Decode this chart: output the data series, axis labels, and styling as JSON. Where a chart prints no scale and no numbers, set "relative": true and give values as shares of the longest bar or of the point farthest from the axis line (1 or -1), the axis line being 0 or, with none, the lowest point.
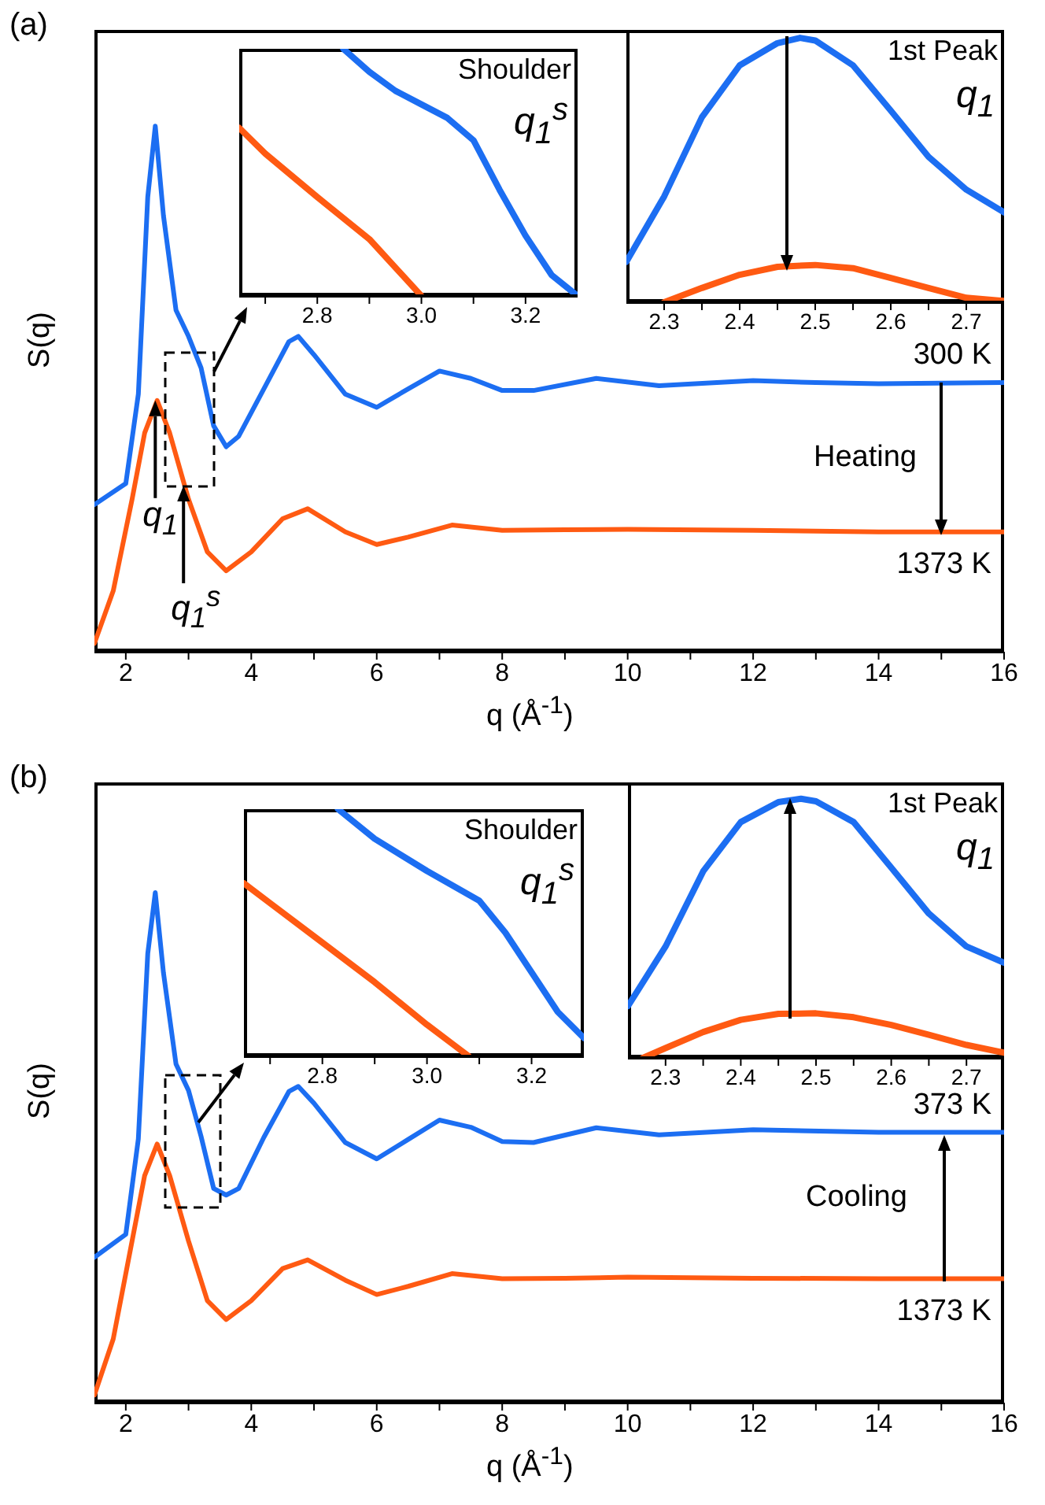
{
  "chart_data": [
    {
      "type": "line",
      "title": "(a)",
      "xlabel": "q (Å$^{-1}$)",
      "ylabel": "S(q)",
      "relative": true,
      "xlim": [
        1.5,
        16
      ],
      "xticks": [
        2,
        {
          "value": 3,
          "label": null
        },
        4,
        {
          "value": 5,
          "label": null
        },
        6,
        {
          "value": 7,
          "label": null
        },
        8,
        {
          "value": 9,
          "label": null
        },
        10,
        {
          "value": 11,
          "label": null
        },
        12,
        {
          "value": 13,
          "label": null
        },
        14,
        {
          "value": 15,
          "label": null
        },
        16
      ],
      "annotations": [
        "Heating",
        {
          "text": "q$_{1}$",
          "x": 2.47,
          "y": 0.478
        },
        {
          "text": "q$_{1}$$^{s}$",
          "x": 2.92,
          "y": 0.316
        }
      ],
      "series": [
        {
          "name": "300 K",
          "color": "#1c6ef2",
          "x": [
            1.5,
            2.0,
            2.2,
            2.35,
            2.47,
            2.6,
            2.8,
            3.0,
            3.2,
            3.4,
            3.6,
            3.8,
            4.2,
            4.6,
            4.75,
            5.0,
            5.5,
            6.0,
            6.5,
            7.0,
            7.5,
            8.0,
            8.5,
            9.5,
            10.5,
            12,
            13,
            14,
            16
          ],
          "values": [
            0.28,
            0.32,
            0.49,
            0.865,
            1.0,
            0.83,
            0.65,
            0.6,
            0.54,
            0.43,
            0.39,
            0.41,
            0.5,
            0.59,
            0.6,
            0.565,
            0.49,
            0.465,
            0.5,
            0.534,
            0.52,
            0.497,
            0.497,
            0.52,
            0.506,
            0.516,
            0.512,
            0.51,
            0.512
          ]
        },
        {
          "name": "1373 K",
          "color": "#ff5a12",
          "x": [
            1.5,
            1.8,
            2.1,
            2.3,
            2.5,
            2.7,
            3.0,
            3.3,
            3.6,
            4.0,
            4.5,
            4.9,
            5.5,
            6.0,
            6.5,
            7.2,
            8.0,
            9.0,
            10,
            12,
            14,
            16
          ],
          "values": [
            0.016,
            0.116,
            0.29,
            0.416,
            0.478,
            0.416,
            0.29,
            0.19,
            0.154,
            0.19,
            0.253,
            0.272,
            0.228,
            0.204,
            0.218,
            0.241,
            0.231,
            0.232,
            0.233,
            0.231,
            0.228,
            0.228
          ]
        }
      ]
    },
    {
      "type": "line",
      "title": "Shoulder",
      "relative": true,
      "xlim": [
        2.65,
        3.3
      ],
      "xticks": [
        {
          "value": 2.7,
          "label": null
        },
        2.8,
        {
          "value": 2.9,
          "label": null
        },
        {
          "value": 3,
          "label": "3.0"
        },
        {
          "value": 3.1,
          "label": null
        },
        3.2
      ],
      "annotations": [
        "q$_{1}$$^{s}$"
      ],
      "series": [
        {
          "color": "#1c6ef2",
          "x": [
            2.85,
            2.9,
            2.95,
            3.0,
            3.05,
            3.1,
            3.15,
            3.2,
            3.25,
            3.3
          ],
          "values": [
            1.0,
            0.907,
            0.83,
            0.775,
            0.72,
            0.63,
            0.43,
            0.244,
            0.085,
            0
          ]
        },
        {
          "color": "#ff5a12",
          "x": [
            2.65,
            2.7,
            2.8,
            2.9,
            3.0
          ],
          "values": [
            0.68,
            0.576,
            0.4,
            0.23,
            0
          ]
        }
      ]
    },
    {
      "type": "line",
      "title": "1st Peak",
      "relative": true,
      "xlim": [
        2.25,
        2.75
      ],
      "xticks": [
        2.3,
        {
          "value": 2.35,
          "label": null
        },
        2.4,
        {
          "value": 2.45,
          "label": null
        },
        2.5,
        {
          "value": 2.55,
          "label": null
        },
        2.6,
        {
          "value": 2.65,
          "label": null
        },
        2.7
      ],
      "annotations": [
        "q$_{1}$"
      ],
      "series": [
        {
          "color": "#1c6ef2",
          "x": [
            2.25,
            2.3,
            2.35,
            2.4,
            2.45,
            2.48,
            2.5,
            2.55,
            2.6,
            2.65,
            2.7,
            2.75
          ],
          "values": [
            0.153,
            0.4,
            0.7,
            0.896,
            0.98,
            1.0,
            0.99,
            0.896,
            0.725,
            0.55,
            0.426,
            0.34
          ]
        },
        {
          "color": "#ff5a12",
          "x": [
            2.3,
            2.35,
            2.4,
            2.45,
            2.5,
            2.55,
            2.6,
            2.65,
            2.7,
            2.75
          ],
          "values": [
            0,
            0.054,
            0.104,
            0.134,
            0.141,
            0.129,
            0.092,
            0.054,
            0.017,
            0.005
          ]
        }
      ]
    },
    {
      "type": "line",
      "title": "(b)",
      "xlabel": "q (Å$^{-1}$)",
      "ylabel": "S(q)",
      "relative": true,
      "xlim": [
        1.5,
        16
      ],
      "xticks": [
        2,
        {
          "value": 3,
          "label": null
        },
        4,
        {
          "value": 5,
          "label": null
        },
        6,
        {
          "value": 7,
          "label": null
        },
        8,
        {
          "value": 9,
          "label": null
        },
        10,
        {
          "value": 11,
          "label": null
        },
        12,
        {
          "value": 13,
          "label": null
        },
        14,
        {
          "value": 15,
          "label": null
        },
        16
      ],
      "annotations": [
        "Cooling"
      ],
      "series": [
        {
          "name": "373 K",
          "color": "#1c6ef2",
          "x": [
            1.5,
            2.0,
            2.2,
            2.35,
            2.47,
            2.6,
            2.8,
            3.0,
            3.2,
            3.4,
            3.6,
            3.8,
            4.2,
            4.6,
            4.75,
            5.0,
            5.5,
            6.0,
            6.5,
            7.0,
            7.5,
            8.0,
            8.5,
            9.5,
            10.5,
            12,
            14,
            16
          ],
          "values": [
            0.285,
            0.33,
            0.517,
            0.88,
            1.0,
            0.843,
            0.664,
            0.612,
            0.522,
            0.42,
            0.407,
            0.42,
            0.52,
            0.61,
            0.62,
            0.587,
            0.51,
            0.478,
            0.516,
            0.554,
            0.54,
            0.512,
            0.51,
            0.539,
            0.525,
            0.535,
            0.53,
            0.53
          ]
        },
        {
          "name": "1373 K",
          "color": "#ff5a12",
          "x": [
            1.5,
            1.8,
            2.1,
            2.3,
            2.5,
            2.7,
            3.0,
            3.3,
            3.6,
            4.0,
            4.5,
            4.9,
            5.5,
            6.0,
            6.5,
            7.2,
            8.0,
            9.0,
            10,
            12,
            14,
            16
          ],
          "values": [
            0.015,
            0.125,
            0.317,
            0.445,
            0.507,
            0.445,
            0.317,
            0.2,
            0.163,
            0.2,
            0.263,
            0.28,
            0.24,
            0.212,
            0.228,
            0.253,
            0.243,
            0.244,
            0.246,
            0.244,
            0.243,
            0.243
          ]
        }
      ]
    },
    {
      "type": "line",
      "title": "Shoulder",
      "relative": true,
      "xlim": [
        2.65,
        3.3
      ],
      "xticks": [
        {
          "value": 2.7,
          "label": null
        },
        2.8,
        {
          "value": 2.9,
          "label": null
        },
        {
          "value": 3,
          "label": "3.0"
        },
        {
          "value": 3.1,
          "label": null
        },
        3.2
      ],
      "annotations": [
        "q$_{1}$$^{s}$"
      ],
      "series": [
        {
          "color": "#1c6ef2",
          "x": [
            2.83,
            2.9,
            3.0,
            3.1,
            3.15,
            3.2,
            3.25,
            3.3
          ],
          "values": [
            1.0,
            0.88,
            0.75,
            0.63,
            0.5,
            0.34,
            0.18,
            0.074
          ]
        },
        {
          "color": "#ff5a12",
          "x": [
            2.65,
            2.7,
            2.8,
            2.9,
            3.0,
            3.05,
            3.08
          ],
          "values": [
            0.7,
            0.62,
            0.46,
            0.3,
            0.128,
            0.048,
            0
          ]
        }
      ]
    },
    {
      "type": "line",
      "title": "1st Peak",
      "relative": true,
      "xlim": [
        2.25,
        2.75
      ],
      "xticks": [
        2.3,
        {
          "value": 2.35,
          "label": null
        },
        2.4,
        {
          "value": 2.45,
          "label": null
        },
        2.5,
        {
          "value": 2.55,
          "label": null
        },
        2.6,
        {
          "value": 2.65,
          "label": null
        },
        2.7
      ],
      "annotations": [
        "q$_{1}$"
      ],
      "series": [
        {
          "color": "#1c6ef2",
          "x": [
            2.25,
            2.3,
            2.35,
            2.4,
            2.45,
            2.48,
            2.5,
            2.55,
            2.6,
            2.65,
            2.7,
            2.75
          ],
          "values": [
            0.2,
            0.43,
            0.72,
            0.91,
            0.987,
            1.0,
            0.99,
            0.91,
            0.734,
            0.557,
            0.43,
            0.367
          ]
        },
        {
          "color": "#ff5a12",
          "x": [
            2.27,
            2.3,
            2.35,
            2.4,
            2.45,
            2.5,
            2.55,
            2.6,
            2.65,
            2.7,
            2.75
          ],
          "values": [
            0,
            0.038,
            0.1,
            0.147,
            0.17,
            0.172,
            0.157,
            0.127,
            0.089,
            0.05,
            0.02
          ]
        }
      ]
    }
  ]
}
